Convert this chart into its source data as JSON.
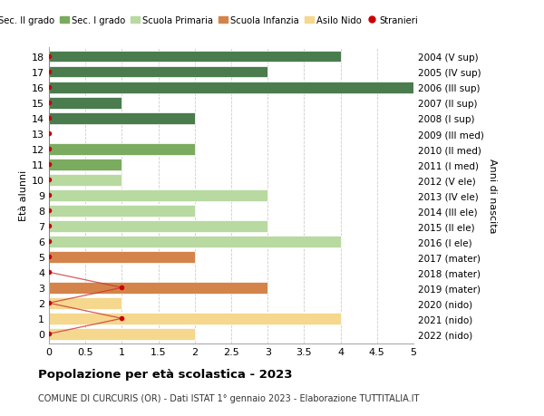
{
  "ages": [
    18,
    17,
    16,
    15,
    14,
    13,
    12,
    11,
    10,
    9,
    8,
    7,
    6,
    5,
    4,
    3,
    2,
    1,
    0
  ],
  "right_labels": [
    "2004 (V sup)",
    "2005 (IV sup)",
    "2006 (III sup)",
    "2007 (II sup)",
    "2008 (I sup)",
    "2009 (III med)",
    "2010 (II med)",
    "2011 (I med)",
    "2012 (V ele)",
    "2013 (IV ele)",
    "2014 (III ele)",
    "2015 (II ele)",
    "2016 (I ele)",
    "2017 (mater)",
    "2018 (mater)",
    "2019 (mater)",
    "2020 (nido)",
    "2021 (nido)",
    "2022 (nido)"
  ],
  "bar_values": [
    4,
    3,
    5,
    1,
    2,
    0,
    2,
    1,
    1,
    3,
    2,
    3,
    4,
    2,
    0,
    3,
    1,
    4,
    2
  ],
  "bar_colors": [
    "#4a7c4e",
    "#4a7c4e",
    "#4a7c4e",
    "#4a7c4e",
    "#4a7c4e",
    "#7aab5e",
    "#7aab5e",
    "#7aab5e",
    "#b8d9a0",
    "#b8d9a0",
    "#b8d9a0",
    "#b8d9a0",
    "#b8d9a0",
    "#d4844a",
    "#d4844a",
    "#d4844a",
    "#f5d78e",
    "#f5d78e",
    "#f5d78e"
  ],
  "stranieri_x": [
    0,
    0,
    0,
    0,
    0,
    0,
    0,
    0,
    0,
    0,
    0,
    0,
    0,
    0,
    0,
    1,
    0,
    1,
    0
  ],
  "legend_labels": [
    "Sec. II grado",
    "Sec. I grado",
    "Scuola Primaria",
    "Scuola Infanzia",
    "Asilo Nido",
    "Stranieri"
  ],
  "legend_colors": [
    "#4a7c4e",
    "#7aab5e",
    "#b8d9a0",
    "#d4844a",
    "#f5d78e",
    "#cc0000"
  ],
  "xlim": [
    0,
    5.0
  ],
  "xticks": [
    0,
    0.5,
    1.0,
    1.5,
    2.0,
    2.5,
    3.0,
    3.5,
    4.0,
    4.5,
    5.0
  ],
  "ylabel_left": "Età alunni",
  "ylabel_right": "Anni di nascita",
  "title": "Popolazione per età scolastica - 2023",
  "subtitle": "COMUNE DI CURCURIS (OR) - Dati ISTAT 1° gennaio 2023 - Elaborazione TUTTITALIA.IT",
  "bg_color": "#ffffff",
  "grid_color": "#cccccc",
  "bar_height": 0.75
}
